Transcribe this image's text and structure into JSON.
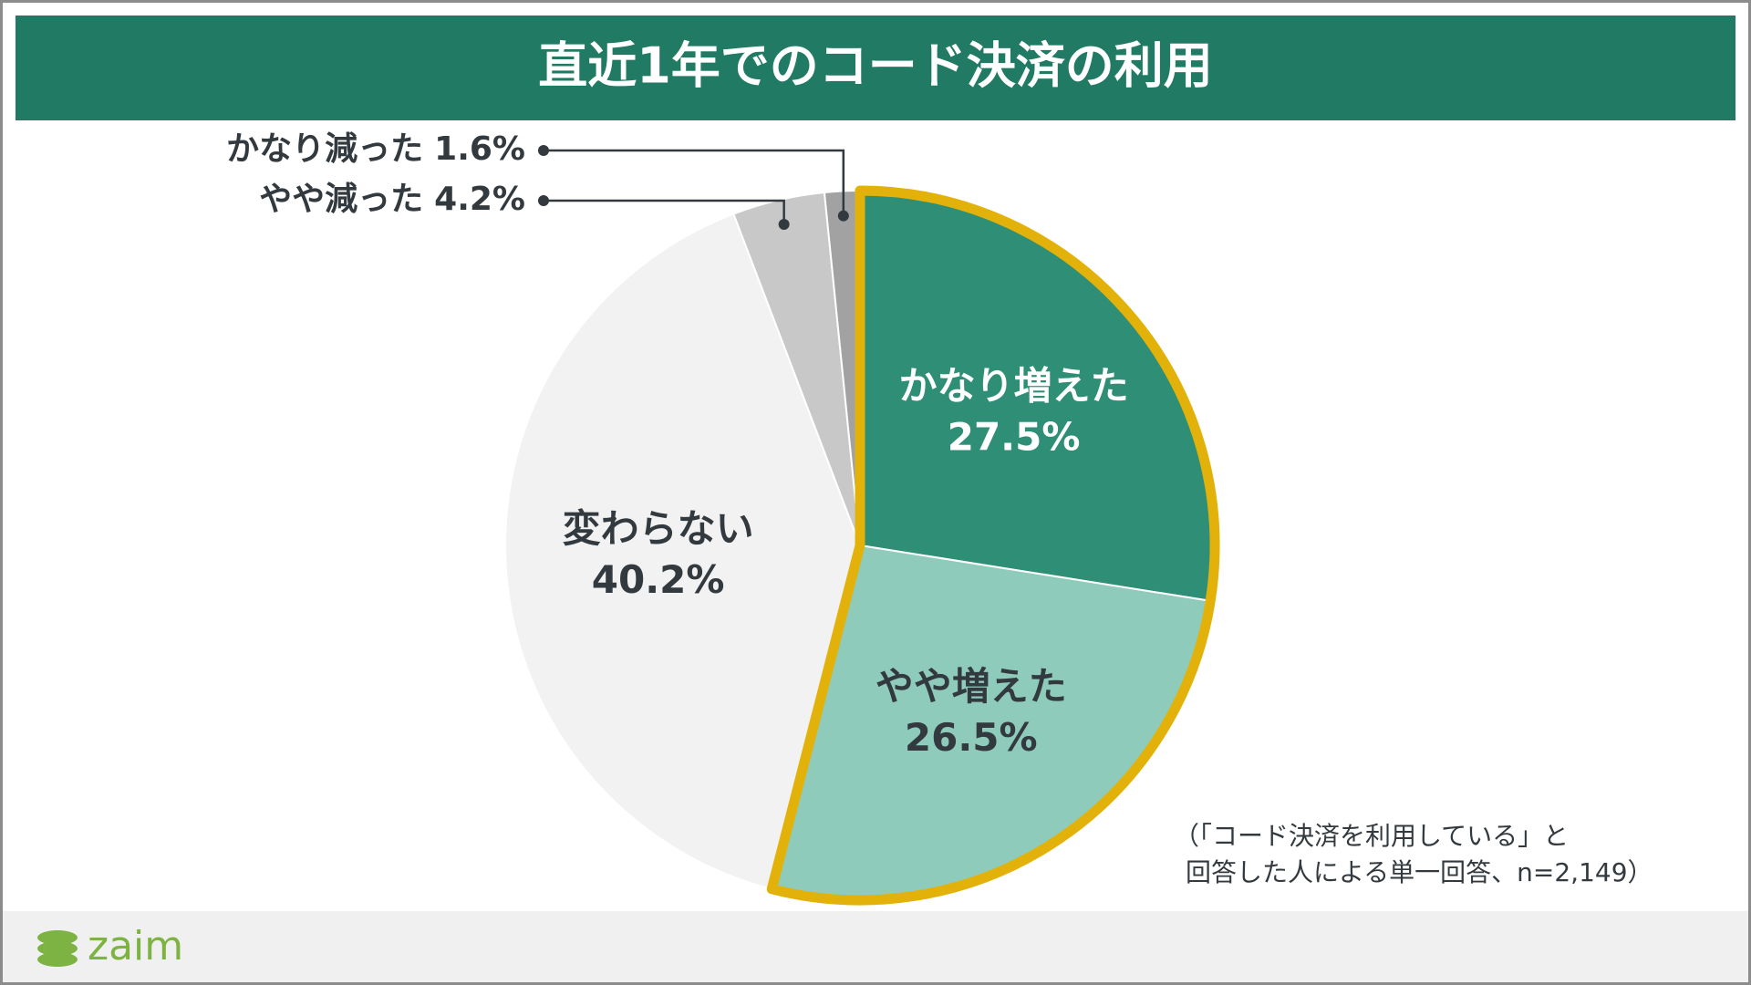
{
  "chart_data": {
    "type": "pie",
    "title": "直近1年でのコード決済の利用",
    "categories": [
      "かなり増えた",
      "やや増えた",
      "変わらない",
      "やや減った",
      "かなり減った"
    ],
    "values": [
      27.5,
      26.5,
      40.2,
      4.2,
      1.6
    ],
    "value_labels": [
      "27.5%",
      "26.5%",
      "40.2%",
      "4.2%",
      "1.6%"
    ],
    "colors": [
      "#2e8f76",
      "#8fcbba",
      "#f2f2f2",
      "#c8c8c8",
      "#a2a2a2"
    ],
    "label_colors": [
      "#ffffff",
      "#333a3f",
      "#333a3f",
      "#333a3f",
      "#333a3f"
    ],
    "highlight": {
      "color": "#e3b20a",
      "slices": [
        0,
        1
      ]
    },
    "note": [
      "（「コード決済を利用している」と",
      "回答した人による単一回答、n=2,149）"
    ],
    "logo": "zaim"
  }
}
